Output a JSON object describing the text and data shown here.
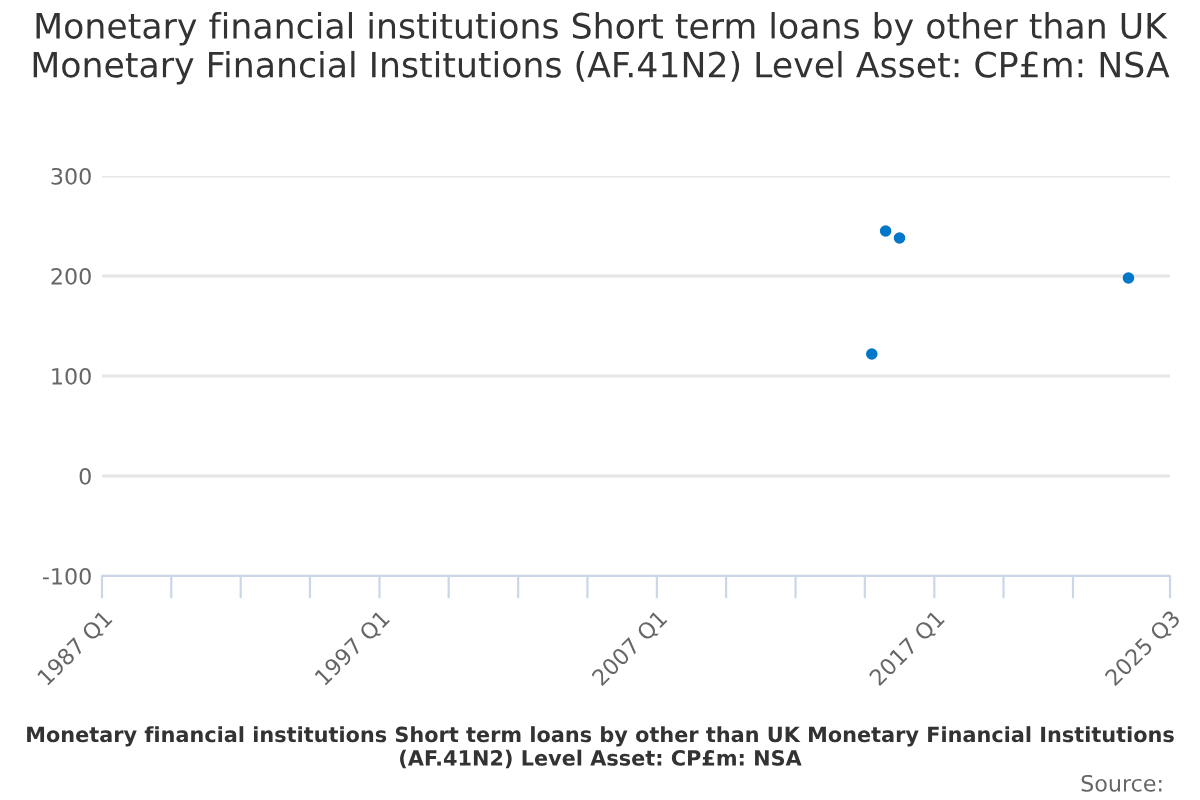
{
  "chart_data": {
    "type": "scatter",
    "title": "Monetary financial institutions Short term loans by other than UK Monetary Financial Institutions (AF.41N2) Level Asset: CP£m: NSA",
    "xlabel": "Monetary financial institutions Short term loans by other than UK Monetary Financial Institutions (AF.41N2) Level Asset: CP£m: NSA",
    "annotations": [
      "Source:"
    ],
    "x": [
      "2014-10",
      "2015-04",
      "2015-10",
      "2024-01"
    ],
    "series": [
      {
        "color": "#0077c8",
        "values": [
          122,
          245,
          238,
          198
        ]
      }
    ],
    "xlim": [
      "1987-01",
      "2025-07"
    ],
    "xticks": [
      {
        "value": "1987-01",
        "label": "1987 Q1"
      },
      {
        "value": "1989-07",
        "label": null
      },
      {
        "value": "1992-01",
        "label": null
      },
      {
        "value": "1994-07",
        "label": null
      },
      {
        "value": "1997-01",
        "label": "1997 Q1"
      },
      {
        "value": "1999-07",
        "label": null
      },
      {
        "value": "2002-01",
        "label": null
      },
      {
        "value": "2004-07",
        "label": null
      },
      {
        "value": "2007-01",
        "label": "2007 Q1"
      },
      {
        "value": "2009-07",
        "label": null
      },
      {
        "value": "2012-01",
        "label": null
      },
      {
        "value": "2014-07",
        "label": null
      },
      {
        "value": "2017-01",
        "label": "2017 Q1"
      },
      {
        "value": "2019-07",
        "label": null
      },
      {
        "value": "2022-01",
        "label": null
      },
      {
        "value": "2025-07",
        "label": "2025 Q3"
      }
    ],
    "ylim": [
      -100,
      300
    ],
    "yticks": [
      -100,
      0,
      100,
      200,
      300
    ],
    "grid": "y",
    "marker": "circle"
  }
}
